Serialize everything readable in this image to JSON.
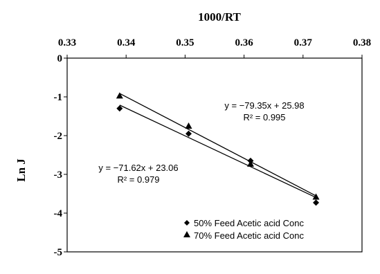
{
  "chart_data": {
    "type": "scatter",
    "xlabel": "1000/RT",
    "ylabel": "Ln J",
    "xlim": [
      0.33,
      0.38
    ],
    "ylim": [
      -5,
      0
    ],
    "x_ticks": [
      "0.33",
      "0.34",
      "0.35",
      "0.36",
      "0.37",
      "0.38"
    ],
    "y_ticks": [
      "0",
      "-1",
      "-2",
      "-3",
      "-4",
      "-5"
    ],
    "x_axis_position": "top",
    "grid": false,
    "legend_position": "bottom-right",
    "series": [
      {
        "name": "50% Feed Acetic acid Conc",
        "marker": "diamond",
        "color": "#000000",
        "points": [
          {
            "x": 0.3389,
            "y": -1.3
          },
          {
            "x": 0.3506,
            "y": -1.95
          },
          {
            "x": 0.3611,
            "y": -2.65
          },
          {
            "x": 0.3722,
            "y": -3.73
          }
        ],
        "trendline": {
          "slope": -71.62,
          "intercept": 23.06
        },
        "equation": "y = −71.62x + 23.06",
        "r2": "R² = 0.979"
      },
      {
        "name": "70% Feed Acetic acid Conc",
        "marker": "triangle",
        "color": "#000000",
        "points": [
          {
            "x": 0.3389,
            "y": -0.97
          },
          {
            "x": 0.3506,
            "y": -1.75
          },
          {
            "x": 0.3611,
            "y": -2.73
          },
          {
            "x": 0.3722,
            "y": -3.58
          }
        ],
        "trendline": {
          "slope": -79.35,
          "intercept": 25.98
        },
        "equation": "y = −79.35x + 25.98",
        "r2": "R² = 0.995"
      }
    ]
  }
}
